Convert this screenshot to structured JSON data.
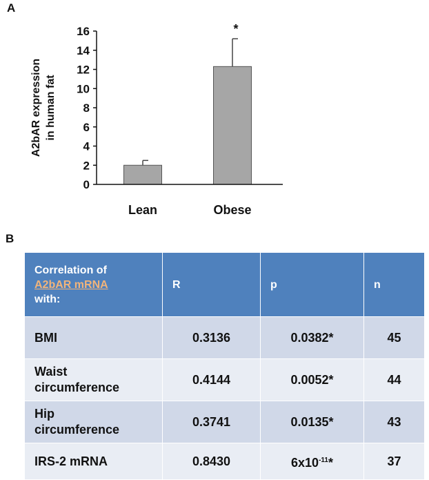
{
  "panel_a_label": "A",
  "panel_b_label": "B",
  "chart_data": {
    "type": "bar",
    "categories": [
      "Lean",
      "Obese"
    ],
    "values": [
      2.0,
      12.3
    ],
    "errors": [
      0.5,
      2.9
    ],
    "annotations": [
      "",
      "*"
    ],
    "ylabel": "A2bAR expression\nin human fat",
    "ylim": [
      0,
      16
    ],
    "yticks": [
      0,
      2,
      4,
      6,
      8,
      10,
      12,
      14,
      16
    ],
    "grid": false,
    "colors": {
      "bar": "#a6a6a6",
      "bar_edge": "#555555"
    }
  },
  "table": {
    "header": {
      "col1_line1": "Correlation of",
      "col1_highlight": "A2bAR mRNA",
      "col1_line3": "with:",
      "col2": "R",
      "col3": "p",
      "col4": "n"
    },
    "rows": [
      {
        "label_line1": "BMI",
        "label_line2": "",
        "r": "0.3136",
        "p": "0.0382*",
        "n": "45"
      },
      {
        "label_line1": "Waist",
        "label_line2": "circumference",
        "r": "0.4144",
        "p": "0.0052*",
        "n": "44"
      },
      {
        "label_line1": "Hip",
        "label_line2": "circumference",
        "r": "0.3741",
        "p": "0.0135*",
        "n": "43"
      },
      {
        "label_line1": "IRS-2 mRNA",
        "label_line2": "",
        "r": "0.8430",
        "p_base": "6x10",
        "p_exp": "-11",
        "p_suffix": "*",
        "n": "37"
      }
    ],
    "colors": {
      "header": "#4f81bd",
      "row_dark": "#d0d8e8",
      "row_light": "#e9edf4",
      "highlight": "#f2b47a"
    }
  }
}
